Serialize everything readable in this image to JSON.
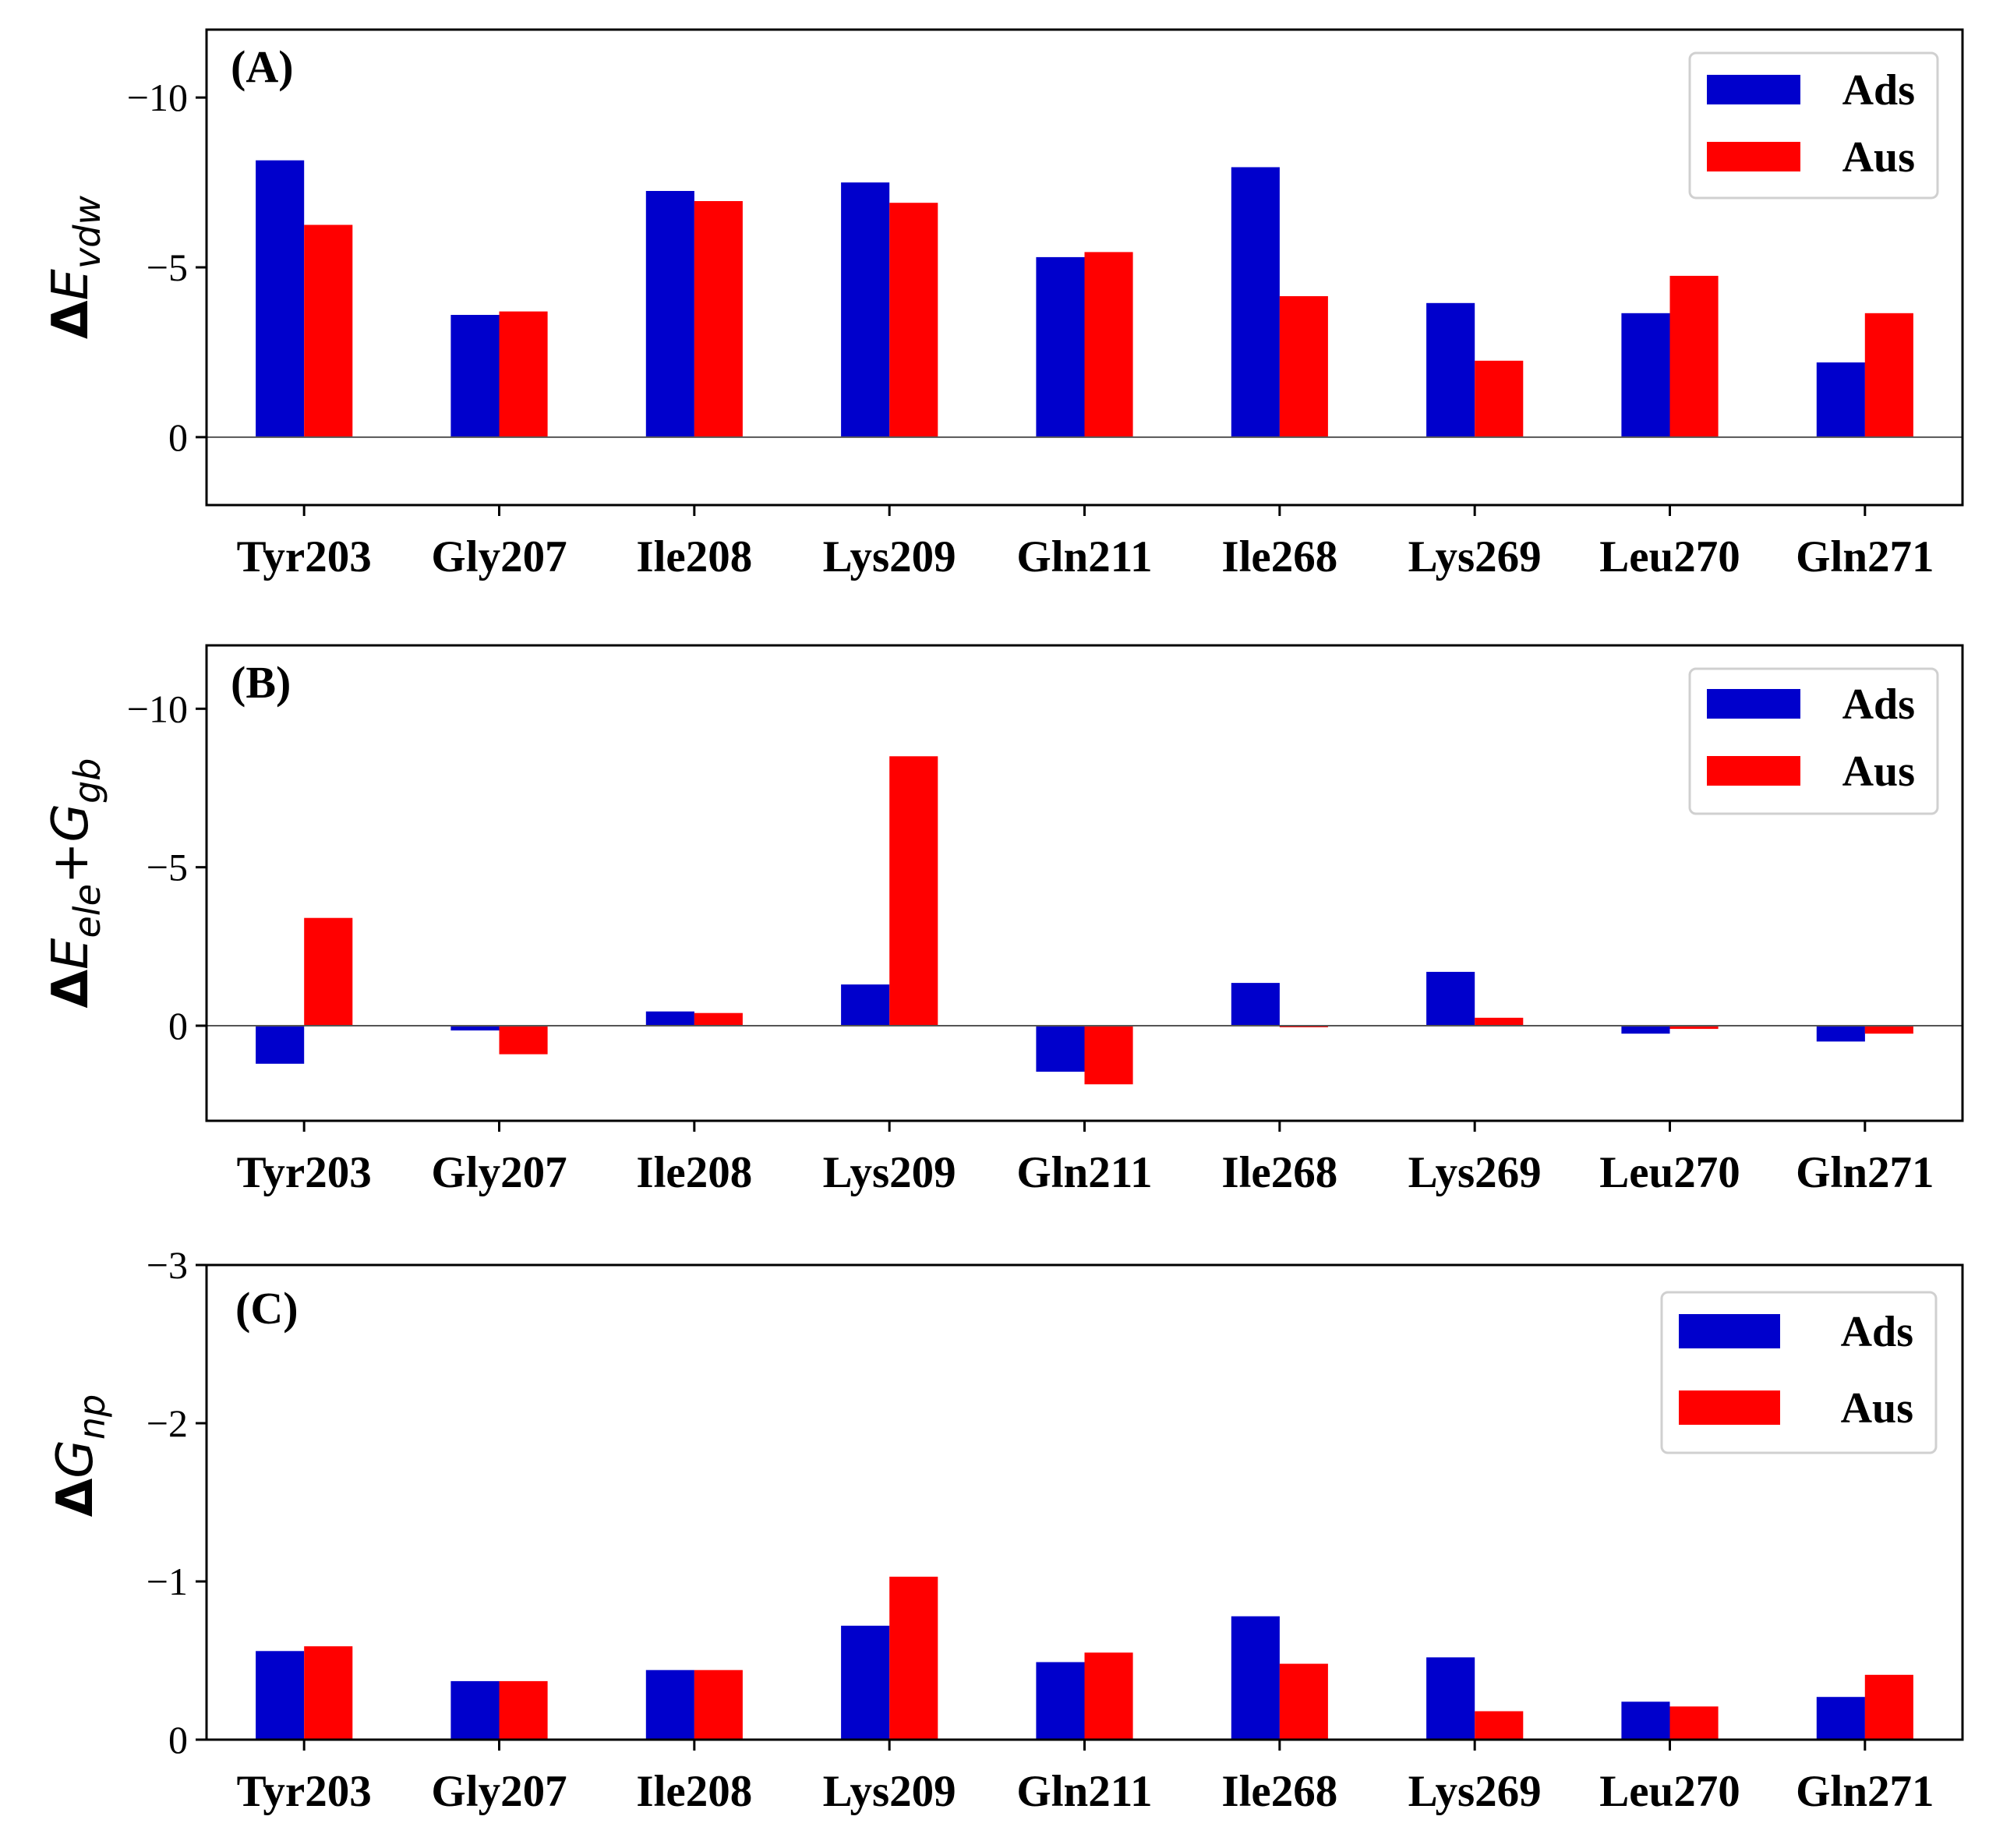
{
  "colors": {
    "ads": "#0000cc",
    "aus": "#ff0000",
    "zero_line": "#555555",
    "frame": "#000000"
  },
  "chart_data": [
    {
      "type": "bar",
      "panel_label": "(A)",
      "ylabel": {
        "delta": "Δ",
        "main": "E",
        "sub": "vdw",
        "plus": "",
        "main2": "",
        "sub2": ""
      },
      "ylim": [
        2.0,
        -12.0
      ],
      "yticks": [
        -10,
        -5,
        0
      ],
      "ytick_labels": [
        "−10",
        "−5",
        "0"
      ],
      "categories": [
        "Tyr203",
        "Gly207",
        "Ile208",
        "Lys209",
        "Gln211",
        "Ile268",
        "Lys269",
        "Leu270",
        "Gln271"
      ],
      "series": [
        {
          "name": "Ads",
          "values": [
            -8.15,
            -3.6,
            -7.25,
            -7.5,
            -5.3,
            -7.95,
            -3.95,
            -3.65,
            -2.2
          ]
        },
        {
          "name": "Aus",
          "values": [
            -6.25,
            -3.7,
            -6.95,
            -6.9,
            -5.45,
            -4.15,
            -2.25,
            -4.75,
            -3.65
          ]
        }
      ],
      "legend": {
        "position": "top-right"
      }
    },
    {
      "type": "bar",
      "panel_label": "(B)",
      "ylabel": {
        "delta": "Δ",
        "main": "E",
        "sub": "ele",
        "plus": "+",
        "main2": "G",
        "sub2": "gb"
      },
      "ylim": [
        3.0,
        -12.0
      ],
      "yticks": [
        -10,
        -5,
        0
      ],
      "ytick_labels": [
        "−10",
        "−5",
        "0"
      ],
      "categories": [
        "Tyr203",
        "Gly207",
        "Ile208",
        "Lys209",
        "Gln211",
        "Ile268",
        "Lys269",
        "Leu270",
        "Gln271"
      ],
      "series": [
        {
          "name": "Ads",
          "values": [
            1.2,
            0.15,
            -0.45,
            -1.3,
            1.45,
            -1.35,
            -1.7,
            0.25,
            0.5
          ]
        },
        {
          "name": "Aus",
          "values": [
            -3.4,
            0.9,
            -0.4,
            -8.5,
            1.85,
            0.05,
            -0.25,
            0.1,
            0.25
          ]
        }
      ],
      "legend": {
        "position": "top-right"
      }
    },
    {
      "type": "bar",
      "panel_label": "(C)",
      "ylabel": {
        "delta": "Δ",
        "main": "G",
        "sub": "np",
        "plus": "",
        "main2": "",
        "sub2": ""
      },
      "ylim": [
        0.0,
        -3.0
      ],
      "yticks": [
        -3,
        -2,
        -1,
        0
      ],
      "ytick_labels": [
        "−3",
        "−2",
        "−1",
        "0"
      ],
      "categories": [
        "Tyr203",
        "Gly207",
        "Ile208",
        "Lys209",
        "Gln211",
        "Ile268",
        "Lys269",
        "Leu270",
        "Gln271"
      ],
      "series": [
        {
          "name": "Ads",
          "values": [
            -0.56,
            -0.37,
            -0.44,
            -0.72,
            -0.49,
            -0.78,
            -0.52,
            -0.24,
            -0.27
          ]
        },
        {
          "name": "Aus",
          "values": [
            -0.59,
            -0.37,
            -0.44,
            -1.03,
            -0.55,
            -0.48,
            -0.18,
            -0.21,
            -0.41
          ]
        }
      ],
      "legend": {
        "position": "top-right"
      }
    }
  ]
}
